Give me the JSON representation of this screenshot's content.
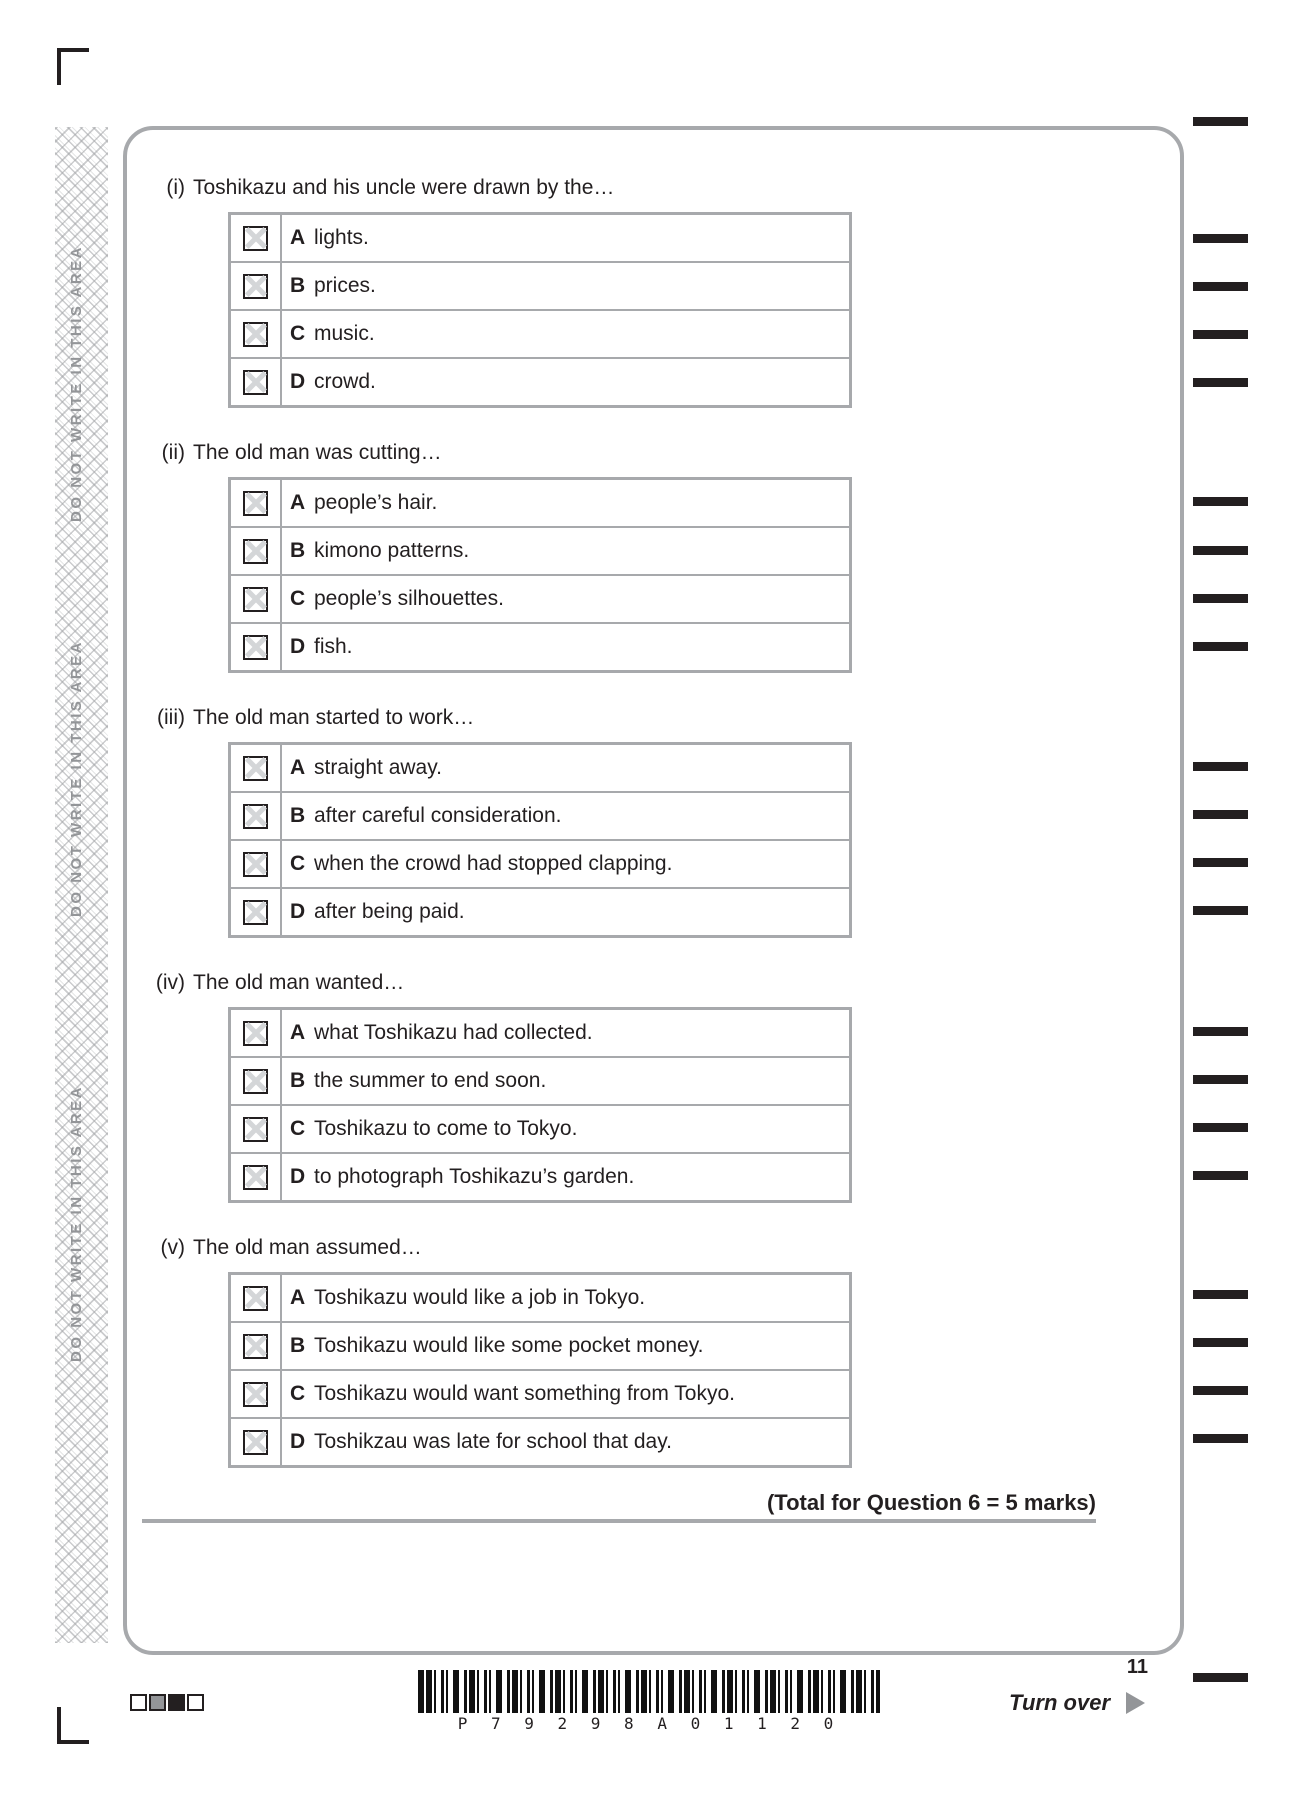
{
  "margin": {
    "label": "DO NOT WRITE IN THIS AREA"
  },
  "questions": [
    {
      "number": "(i)",
      "prompt": "Toshikazu and his uncle were drawn by the…",
      "options": [
        {
          "letter": "A",
          "text": "lights."
        },
        {
          "letter": "B",
          "text": "prices."
        },
        {
          "letter": "C",
          "text": "music."
        },
        {
          "letter": "D",
          "text": "crowd."
        }
      ]
    },
    {
      "number": "(ii)",
      "prompt": "The old man was cutting…",
      "options": [
        {
          "letter": "A",
          "text": "people’s hair."
        },
        {
          "letter": "B",
          "text": "kimono patterns."
        },
        {
          "letter": "C",
          "text": "people’s silhouettes."
        },
        {
          "letter": "D",
          "text": "fish."
        }
      ]
    },
    {
      "number": "(iii)",
      "prompt": "The old man started to work…",
      "options": [
        {
          "letter": "A",
          "text": "straight away."
        },
        {
          "letter": "B",
          "text": "after careful consideration."
        },
        {
          "letter": "C",
          "text": "when the crowd had stopped clapping."
        },
        {
          "letter": "D",
          "text": "after being paid."
        }
      ]
    },
    {
      "number": "(iv)",
      "prompt": "The old man wanted…",
      "options": [
        {
          "letter": "A",
          "text": "what Toshikazu had collected."
        },
        {
          "letter": "B",
          "text": "the summer to end soon."
        },
        {
          "letter": "C",
          "text": "Toshikazu to come to Tokyo."
        },
        {
          "letter": "D",
          "text": "to photograph Toshikazu’s garden."
        }
      ]
    },
    {
      "number": "(v)",
      "prompt": "The old man assumed…",
      "options": [
        {
          "letter": "A",
          "text": "Toshikazu would like a job in Tokyo."
        },
        {
          "letter": "B",
          "text": "Toshikazu would like some pocket money."
        },
        {
          "letter": "C",
          "text": "Toshikazu would want something from Tokyo."
        },
        {
          "letter": "D",
          "text": "Toshikzau was late for school that day."
        }
      ]
    }
  ],
  "footer": {
    "total_label": "(Total for Question 6 = 5 marks)",
    "page_number": "11",
    "turn_over_label": "Turn over",
    "barcode_text": "P 7 9 2 9 8 A 0 1 1 2 0"
  },
  "colors": {
    "text": "#231f20",
    "border_gray": "#a7a9ac",
    "checkbox_x": "#d4d6d8",
    "margin_text": "#939598"
  }
}
